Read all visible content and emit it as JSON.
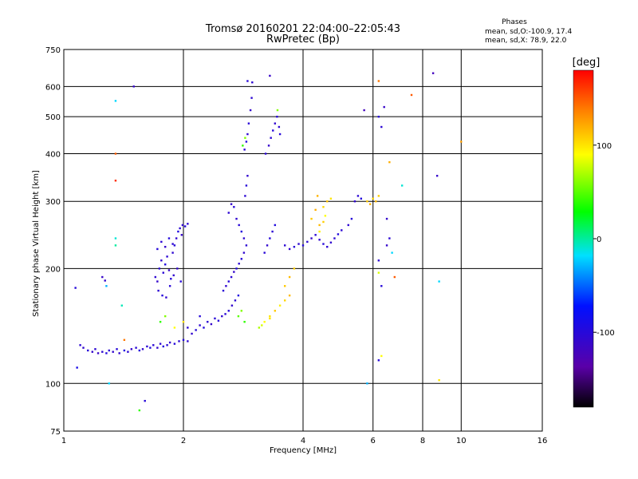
{
  "chart_data": {
    "type": "scatter",
    "title": "Tromsø 20160201 22:04:00–22:05:43",
    "subtitle": "RwPretec (Bp)",
    "xlabel": "Frequency [MHz]",
    "ylabel": "Stationary phase Virtual Height [km]",
    "x_scale": "log",
    "y_scale": "log",
    "xlim": [
      1,
      16
    ],
    "ylim": [
      75,
      750
    ],
    "x_ticks": [
      1,
      2,
      4,
      6,
      8,
      10,
      16
    ],
    "y_ticks": [
      75,
      100,
      200,
      300,
      400,
      500,
      600,
      750
    ],
    "grid": true,
    "stats": {
      "heading": "Phases",
      "line_o": "mean, sd,O:-100.9, 17.4",
      "line_x": "mean, sd,X:  78.9, 22.0"
    },
    "colorbar": {
      "label": "[deg]",
      "ticks": [
        100,
        0,
        -100
      ],
      "range": [
        -180,
        180
      ]
    },
    "series": [
      {
        "name": "",
        "points": [
          [
            1.1,
            126,
            -105
          ],
          [
            1.12,
            124,
            -108
          ],
          [
            1.15,
            122,
            -100
          ],
          [
            1.18,
            121,
            -110
          ],
          [
            1.2,
            123,
            -104
          ],
          [
            1.22,
            120,
            -112
          ],
          [
            1.25,
            121,
            -106
          ],
          [
            1.28,
            120,
            -98
          ],
          [
            1.3,
            122,
            -103
          ],
          [
            1.33,
            121,
            -109
          ],
          [
            1.36,
            123,
            -101
          ],
          [
            1.38,
            120,
            -107
          ],
          [
            1.42,
            122,
            -95
          ],
          [
            1.45,
            121,
            -104
          ],
          [
            1.48,
            123,
            -111
          ],
          [
            1.52,
            124,
            -102
          ],
          [
            1.55,
            122,
            -99
          ],
          [
            1.58,
            123,
            -108
          ],
          [
            1.62,
            125,
            -104
          ],
          [
            1.65,
            124,
            -96
          ],
          [
            1.68,
            126,
            -103
          ],
          [
            1.72,
            124,
            -110
          ],
          [
            1.75,
            127,
            -105
          ],
          [
            1.78,
            125,
            -98
          ],
          [
            1.82,
            126,
            -102
          ],
          [
            1.85,
            128,
            -107
          ],
          [
            1.9,
            127,
            -100
          ],
          [
            1.95,
            129,
            -104
          ],
          [
            2.0,
            130,
            -97
          ],
          [
            2.05,
            129,
            -106
          ],
          [
            1.08,
            110,
            -90
          ],
          [
            1.07,
            178,
            -100
          ],
          [
            1.25,
            190,
            -112
          ],
          [
            1.27,
            186,
            -108
          ],
          [
            1.28,
            180,
            -30
          ],
          [
            1.7,
            190,
            -105
          ],
          [
            1.72,
            185,
            -110
          ],
          [
            1.74,
            200,
            -100
          ],
          [
            1.76,
            210,
            -108
          ],
          [
            1.78,
            195,
            -103
          ],
          [
            1.8,
            205,
            -96
          ],
          [
            1.82,
            215,
            -104
          ],
          [
            1.84,
            198,
            -112
          ],
          [
            1.86,
            188,
            -99
          ],
          [
            1.88,
            220,
            -106
          ],
          [
            1.9,
            230,
            -101
          ],
          [
            1.92,
            240,
            -108
          ],
          [
            1.94,
            250,
            -95
          ],
          [
            1.96,
            255,
            -103
          ],
          [
            1.98,
            245,
            -110
          ],
          [
            1.73,
            175,
            -104
          ],
          [
            1.77,
            170,
            -99
          ],
          [
            1.81,
            168,
            -107
          ],
          [
            1.85,
            180,
            -102
          ],
          [
            1.89,
            192,
            -108
          ],
          [
            1.72,
            225,
            -100
          ],
          [
            1.76,
            235,
            -105
          ],
          [
            1.8,
            228,
            -111
          ],
          [
            1.84,
            240,
            -97
          ],
          [
            1.88,
            232,
            -104
          ],
          [
            1.93,
            200,
            -108
          ],
          [
            1.97,
            185,
            -101
          ],
          [
            1.99,
            260,
            -106
          ],
          [
            2.02,
            258,
            -99
          ],
          [
            2.05,
            262,
            -104
          ],
          [
            2.05,
            140,
            -102
          ],
          [
            2.1,
            135,
            -108
          ],
          [
            2.15,
            138,
            -100
          ],
          [
            2.2,
            142,
            -105
          ],
          [
            2.25,
            140,
            -97
          ],
          [
            2.3,
            145,
            -104
          ],
          [
            2.35,
            143,
            -110
          ],
          [
            2.4,
            148,
            -102
          ],
          [
            2.45,
            146,
            -99
          ],
          [
            2.5,
            150,
            -107
          ],
          [
            2.55,
            152,
            -103
          ],
          [
            2.6,
            155,
            -100
          ],
          [
            2.65,
            160,
            -108
          ],
          [
            2.7,
            165,
            -104
          ],
          [
            2.75,
            170,
            -96
          ],
          [
            2.52,
            175,
            -102
          ],
          [
            2.56,
            180,
            -107
          ],
          [
            2.6,
            185,
            -100
          ],
          [
            2.64,
            190,
            -104
          ],
          [
            2.68,
            196,
            -110
          ],
          [
            2.72,
            200,
            -98
          ],
          [
            2.76,
            206,
            -106
          ],
          [
            2.8,
            212,
            -101
          ],
          [
            2.84,
            220,
            -108
          ],
          [
            2.88,
            230,
            -104
          ],
          [
            2.6,
            280,
            -105
          ],
          [
            2.64,
            295,
            -110
          ],
          [
            2.68,
            290,
            -100
          ],
          [
            2.72,
            270,
            -107
          ],
          [
            2.76,
            260,
            -102
          ],
          [
            2.8,
            250,
            -99
          ],
          [
            2.84,
            240,
            -106
          ],
          [
            2.86,
            310,
            -104
          ],
          [
            2.88,
            330,
            -100
          ],
          [
            2.9,
            350,
            -108
          ],
          [
            2.85,
            410,
            -103
          ],
          [
            2.88,
            430,
            -98
          ],
          [
            2.9,
            450,
            -106
          ],
          [
            2.92,
            480,
            -101
          ],
          [
            2.95,
            520,
            -110
          ],
          [
            2.97,
            560,
            -104
          ],
          [
            2.9,
            620,
            -100
          ],
          [
            2.98,
            615,
            -105
          ],
          [
            2.82,
            420,
            40
          ],
          [
            2.86,
            440,
            60
          ],
          [
            3.2,
            220,
            -102
          ],
          [
            3.25,
            230,
            -108
          ],
          [
            3.3,
            240,
            -100
          ],
          [
            3.35,
            250,
            -104
          ],
          [
            3.4,
            260,
            -96
          ],
          [
            3.22,
            400,
            -103
          ],
          [
            3.28,
            420,
            -110
          ],
          [
            3.32,
            440,
            -104
          ],
          [
            3.36,
            460,
            -99
          ],
          [
            3.4,
            480,
            -107
          ],
          [
            3.44,
            500,
            -102
          ],
          [
            3.48,
            470,
            -106
          ],
          [
            3.5,
            450,
            -100
          ],
          [
            3.3,
            640,
            -112
          ],
          [
            3.45,
            520,
            60
          ],
          [
            3.6,
            230,
            -104
          ],
          [
            3.7,
            225,
            -108
          ],
          [
            3.8,
            228,
            -101
          ],
          [
            3.9,
            232,
            -106
          ],
          [
            4.0,
            230,
            -99
          ],
          [
            4.1,
            235,
            -104
          ],
          [
            4.2,
            240,
            -110
          ],
          [
            4.3,
            245,
            -102
          ],
          [
            4.4,
            238,
            -107
          ],
          [
            4.5,
            232,
            -100
          ],
          [
            4.6,
            228,
            -105
          ],
          [
            4.7,
            234,
            -108
          ],
          [
            4.8,
            240,
            -103
          ],
          [
            4.9,
            246,
            -97
          ],
          [
            5.0,
            252,
            -104
          ],
          [
            4.2,
            270,
            110
          ],
          [
            4.3,
            285,
            120
          ],
          [
            4.4,
            260,
            115
          ],
          [
            4.5,
            290,
            105
          ],
          [
            4.6,
            300,
            112
          ],
          [
            4.4,
            250,
            95
          ],
          [
            4.5,
            265,
            108
          ],
          [
            4.35,
            310,
            118
          ],
          [
            4.7,
            305,
            100
          ],
          [
            4.55,
            275,
            90
          ],
          [
            5.2,
            260,
            -105
          ],
          [
            5.3,
            270,
            -100
          ],
          [
            5.4,
            300,
            -108
          ],
          [
            5.5,
            310,
            -103
          ],
          [
            5.6,
            305,
            -97
          ],
          [
            5.8,
            300,
            110
          ],
          [
            5.9,
            295,
            120
          ],
          [
            6.0,
            305,
            105
          ],
          [
            6.1,
            300,
            115
          ],
          [
            6.2,
            310,
            108
          ],
          [
            3.3,
            150,
            100
          ],
          [
            3.4,
            155,
            110
          ],
          [
            3.5,
            160,
            95
          ],
          [
            3.6,
            165,
            105
          ],
          [
            3.7,
            170,
            115
          ],
          [
            3.2,
            145,
            90
          ],
          [
            3.3,
            148,
            100
          ],
          [
            3.6,
            180,
            110
          ],
          [
            3.7,
            190,
            115
          ],
          [
            3.8,
            200,
            108
          ],
          [
            2.75,
            150,
            50
          ],
          [
            2.8,
            155,
            60
          ],
          [
            2.85,
            145,
            40
          ],
          [
            3.1,
            140,
            70
          ],
          [
            3.15,
            142,
            80
          ],
          [
            1.35,
            400,
            150
          ],
          [
            1.35,
            340,
            165
          ],
          [
            1.35,
            550,
            -20
          ],
          [
            1.35,
            240,
            -10
          ],
          [
            1.35,
            230,
            0
          ],
          [
            1.5,
            600,
            -110
          ],
          [
            1.4,
            160,
            -5
          ],
          [
            1.3,
            100,
            -20
          ],
          [
            1.6,
            90,
            -100
          ],
          [
            1.55,
            85,
            40
          ],
          [
            5.7,
            520,
            -120
          ],
          [
            6.2,
            620,
            140
          ],
          [
            6.2,
            500,
            -100
          ],
          [
            6.3,
            470,
            -104
          ],
          [
            6.4,
            530,
            -112
          ],
          [
            6.6,
            380,
            120
          ],
          [
            7.1,
            330,
            -10
          ],
          [
            7.5,
            570,
            150
          ],
          [
            8.5,
            650,
            -120
          ],
          [
            8.7,
            350,
            -110
          ],
          [
            8.8,
            185,
            -20
          ],
          [
            10.0,
            430,
            125
          ],
          [
            8.8,
            102,
            100
          ],
          [
            6.2,
            195,
            80
          ],
          [
            6.3,
            180,
            -100
          ],
          [
            6.2,
            210,
            -105
          ],
          [
            6.5,
            230,
            -110
          ],
          [
            6.7,
            220,
            -20
          ],
          [
            6.8,
            190,
            150
          ],
          [
            5.8,
            100,
            -30
          ],
          [
            6.2,
            115,
            -100
          ],
          [
            6.3,
            118,
            90
          ],
          [
            6.6,
            240,
            -104
          ],
          [
            6.5,
            270,
            -110
          ],
          [
            1.42,
            130,
            140
          ],
          [
            1.75,
            145,
            40
          ],
          [
            1.8,
            150,
            60
          ],
          [
            1.9,
            140,
            90
          ],
          [
            2.0,
            145,
            100
          ],
          [
            2.2,
            150,
            -100
          ]
        ]
      }
    ]
  }
}
